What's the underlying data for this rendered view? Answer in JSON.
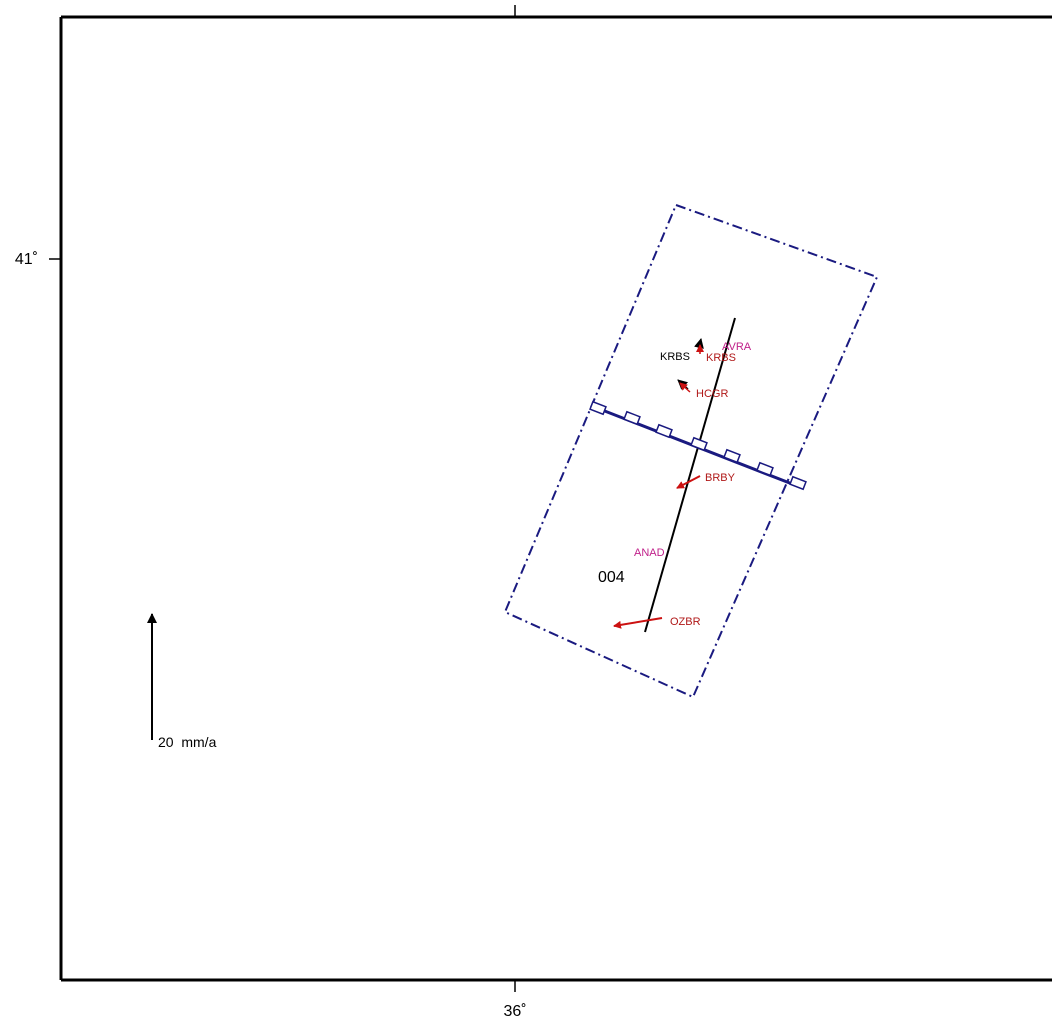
{
  "frame": {
    "lon_tick_label": "36˚",
    "lat_tick_label": "41˚"
  },
  "track": {
    "label": "004",
    "color": "#1a1a80"
  },
  "stations": [
    {
      "name": "AVRA",
      "color": "#c0208a"
    },
    {
      "name": "KRBS",
      "color": "#000000"
    },
    {
      "name": "KRBS",
      "color": "#b01818"
    },
    {
      "name": "HCGR",
      "color": "#b01818"
    },
    {
      "name": "BRBY",
      "color": "#b01818"
    },
    {
      "name": "ANAD",
      "color": "#c0208a"
    },
    {
      "name": "OZBR",
      "color": "#b01818"
    }
  ],
  "scale": {
    "label": "20  mm/a"
  },
  "colors": {
    "frame": "#000000",
    "velocity_arrow": "#cc1111",
    "profile_line": "#000000"
  }
}
